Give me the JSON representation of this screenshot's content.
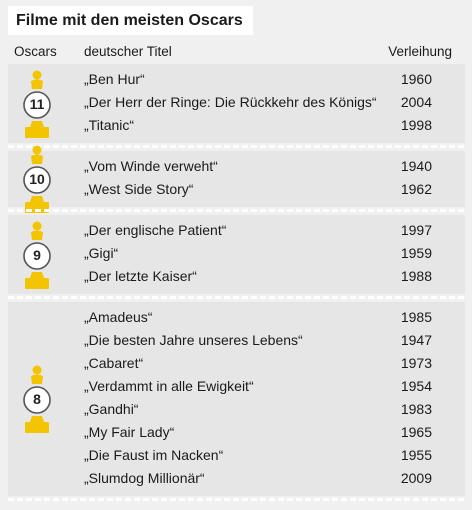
{
  "title": "Filme mit den meisten Oscars",
  "headers": {
    "oscars": "Oscars",
    "titel": "deutscher Titel",
    "jahr": "Verleihung"
  },
  "colors": {
    "statue": "#f2c500",
    "panel": "#e6e6e6",
    "background": "#f0f0f0"
  },
  "chart_data": {
    "type": "table",
    "title": "Filme mit den meisten Oscars",
    "columns": [
      "Oscars",
      "deutscher Titel",
      "Verleihung"
    ],
    "groups": [
      {
        "oscars": "11",
        "films": [
          {
            "title": "„Ben Hur“",
            "year": "1960"
          },
          {
            "title": "„Der Herr der Ringe: Die Rückkehr des Königs“",
            "year": "2004"
          },
          {
            "title": "„Titanic“",
            "year": "1998"
          }
        ]
      },
      {
        "oscars": "10",
        "films": [
          {
            "title": "„Vom Winde verweht“",
            "year": "1940"
          },
          {
            "title": "„West Side Story“",
            "year": "1962"
          }
        ]
      },
      {
        "oscars": "9",
        "films": [
          {
            "title": "„Der englische Patient“",
            "year": "1997"
          },
          {
            "title": "„Gigi“",
            "year": "1959"
          },
          {
            "title": "„Der letzte Kaiser“",
            "year": "1988"
          }
        ]
      },
      {
        "oscars": "8",
        "films": [
          {
            "title": "„Amadeus“",
            "year": "1985"
          },
          {
            "title": "„Die besten Jahre unseres Lebens“",
            "year": "1947"
          },
          {
            "title": "„Cabaret“",
            "year": "1973"
          },
          {
            "title": "„Verdammt in alle Ewigkeit“",
            "year": "1954"
          },
          {
            "title": "„Gandhi“",
            "year": "1983"
          },
          {
            "title": "„My Fair Lady“",
            "year": "1965"
          },
          {
            "title": "„Die Faust im Nacken“",
            "year": "1955"
          },
          {
            "title": "„Slumdog Millionär“",
            "year": "2009"
          }
        ]
      }
    ]
  }
}
